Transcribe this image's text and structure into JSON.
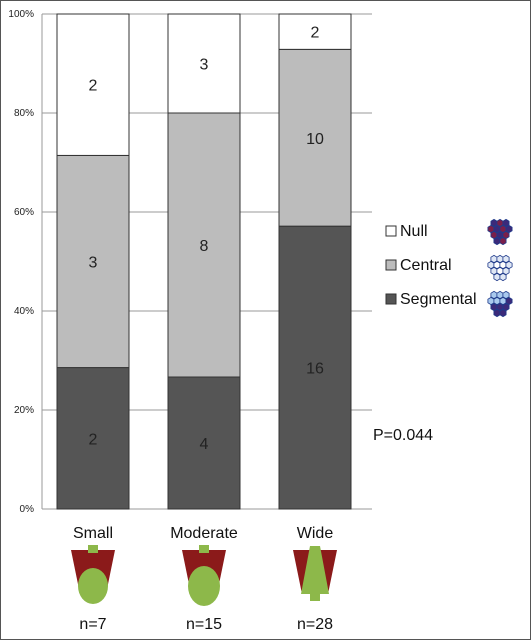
{
  "chart_data": {
    "type": "bar",
    "stacked": true,
    "normalized": true,
    "categories": [
      "Small",
      "Moderate",
      "Wide"
    ],
    "sample_sizes": [
      "n=7",
      "n=15",
      "n=28"
    ],
    "series": [
      {
        "name": "Segmental",
        "values": [
          2,
          4,
          16
        ],
        "color": "#555555"
      },
      {
        "name": "Central",
        "values": [
          3,
          8,
          10
        ],
        "color": "#bcbcbc"
      },
      {
        "name": "Null",
        "values": [
          2,
          3,
          2
        ],
        "color": "#ffffff"
      }
    ],
    "legend_order": [
      "Null",
      "Central",
      "Segmental"
    ],
    "legend_position": "right",
    "ylim": [
      0,
      100
    ],
    "yticks": [
      "0%",
      "20%",
      "40%",
      "60%",
      "80%",
      "100%"
    ],
    "grid": true,
    "annotation": "P=0.044",
    "icon_colors": {
      "dark_red": "#8b1a1a",
      "green": "#8db84a",
      "navy": "#1f3a8a"
    }
  }
}
